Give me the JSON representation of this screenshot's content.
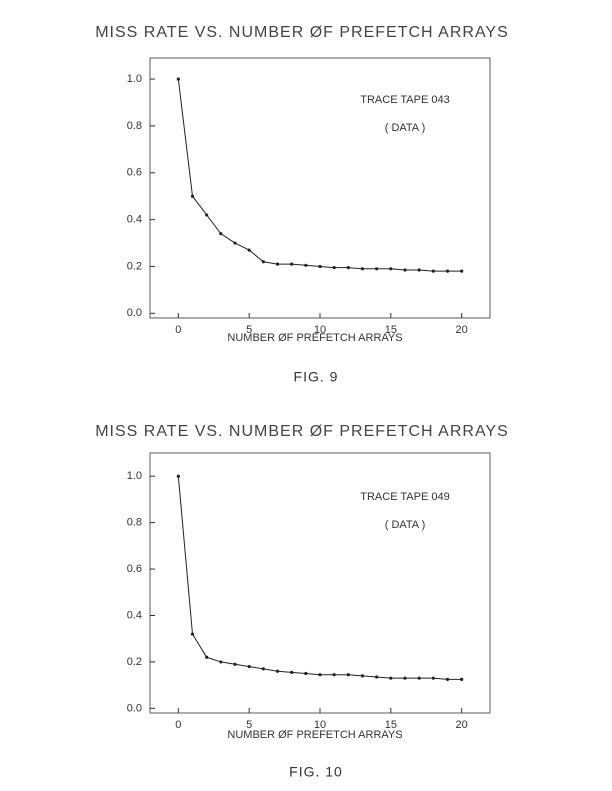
{
  "chart_data": [
    {
      "type": "line",
      "title": "MISS RATE VS. NUMBER ØF PREFETCH ARRAYS",
      "x_label": "NUMBER ØF PREFETCH ARRAYS",
      "annotations": [
        "TRACE TAPE 043",
        "( DATA )"
      ],
      "caption": "FIG. 9",
      "x": [
        0,
        1,
        2,
        3,
        4,
        5,
        6,
        7,
        8,
        9,
        10,
        11,
        12,
        13,
        14,
        15,
        16,
        17,
        18,
        19,
        20
      ],
      "values": [
        1.0,
        0.5,
        0.42,
        0.34,
        0.3,
        0.27,
        0.22,
        0.21,
        0.21,
        0.205,
        0.2,
        0.195,
        0.195,
        0.19,
        0.19,
        0.19,
        0.185,
        0.185,
        0.18,
        0.18,
        0.18
      ],
      "color": "#222",
      "xlim": [
        -2,
        22
      ],
      "xticks": [
        0,
        5,
        10,
        15,
        20
      ],
      "ylim": [
        -0.02,
        1.09
      ],
      "yticks": [
        {
          "value": 0,
          "label": "0.0"
        },
        0.2,
        0.4,
        0.6,
        0.8,
        {
          "value": 1,
          "label": "1.0"
        }
      ]
    },
    {
      "type": "line",
      "title": "MISS RATE VS. NUMBER ØF PREFETCH ARRAYS",
      "x_label": "NUMBER ØF PREFETCH ARRAYS",
      "annotations": [
        "TRACE TAPE 049",
        "( DATA )"
      ],
      "caption": "FIG. 10",
      "x": [
        0,
        1,
        2,
        3,
        4,
        5,
        6,
        7,
        8,
        9,
        10,
        11,
        12,
        13,
        14,
        15,
        16,
        17,
        18,
        19,
        20
      ],
      "values": [
        1.0,
        0.32,
        0.22,
        0.2,
        0.19,
        0.18,
        0.17,
        0.16,
        0.155,
        0.15,
        0.145,
        0.145,
        0.145,
        0.14,
        0.135,
        0.13,
        0.13,
        0.13,
        0.13,
        0.125,
        0.125
      ],
      "color": "#222",
      "xlim": [
        -2,
        22
      ],
      "xticks": [
        0,
        5,
        10,
        15,
        20
      ],
      "ylim": [
        -0.02,
        1.1
      ],
      "yticks": [
        {
          "value": 0,
          "label": "0.0"
        },
        0.2,
        0.4,
        0.6,
        0.8,
        {
          "value": 1,
          "label": "1.0"
        }
      ]
    }
  ]
}
